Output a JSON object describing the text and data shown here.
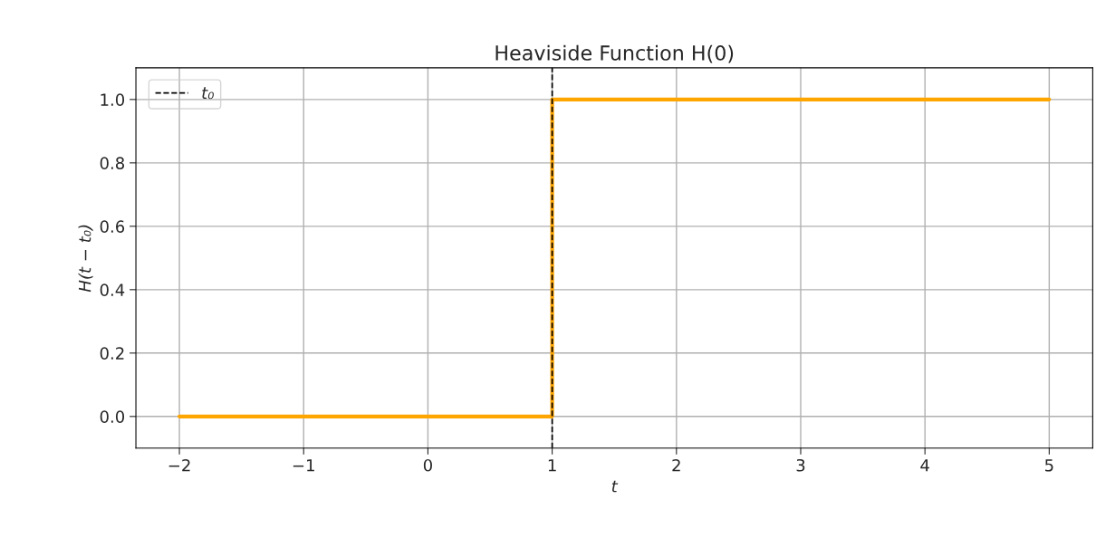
{
  "chart_data": {
    "type": "step",
    "title": "Heaviside Function H(0)",
    "xlabel": "t",
    "ylabel": "H(t − t₀)",
    "x": [
      -2,
      1,
      5
    ],
    "series": [
      {
        "color": "#ffa500",
        "values": [
          0,
          1,
          1
        ]
      }
    ],
    "ref_lines": [
      {
        "axis": "x",
        "value": 1,
        "label": "t₀",
        "color": "#000000",
        "line_style": "dashed"
      }
    ],
    "xlim": [
      -2.35,
      5.35
    ],
    "ylim": [
      -0.1,
      1.1
    ],
    "xticks": [
      {
        "value": -2,
        "label": "−2"
      },
      {
        "value": -1,
        "label": "−1"
      },
      0,
      1,
      2,
      3,
      4,
      5
    ],
    "yticks": [
      {
        "value": 0,
        "label": "0.0"
      },
      {
        "value": 0.2,
        "label": "0.2"
      },
      {
        "value": 0.4,
        "label": "0.4"
      },
      {
        "value": 0.6,
        "label": "0.6"
      },
      {
        "value": 0.8,
        "label": "0.8"
      },
      {
        "value": 1,
        "label": "1.0"
      }
    ],
    "grid": true,
    "legend": "top left"
  }
}
